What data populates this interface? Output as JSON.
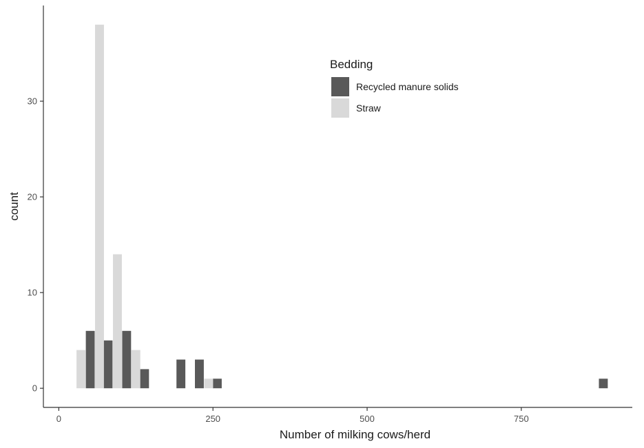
{
  "chart_data": {
    "type": "bar",
    "xlabel": "Number of milking cows/herd",
    "ylabel": "count",
    "xlim": [
      -25,
      930
    ],
    "ylim": [
      -2,
      40
    ],
    "x_ticks": [
      0,
      250,
      500,
      750
    ],
    "y_ticks": [
      0,
      10,
      20,
      30
    ],
    "bin_width": 29.5,
    "grid": false,
    "legend": {
      "title": "Bedding",
      "position": "top-center",
      "items": [
        {
          "label": "Recycled manure solids",
          "color": "#595959"
        },
        {
          "label": "Straw",
          "color": "#d9d9d9"
        }
      ]
    },
    "series": [
      {
        "name": "Recycled manure solids",
        "color": "#595959",
        "bins": [
          {
            "x": 51,
            "count": 6
          },
          {
            "x": 80,
            "count": 5
          },
          {
            "x": 110,
            "count": 6
          },
          {
            "x": 139,
            "count": 2
          },
          {
            "x": 198,
            "count": 3
          },
          {
            "x": 228,
            "count": 3
          },
          {
            "x": 257,
            "count": 1
          },
          {
            "x": 883,
            "count": 1
          }
        ]
      },
      {
        "name": "Straw",
        "color": "#d9d9d9",
        "bins": [
          {
            "x": 36,
            "count": 4
          },
          {
            "x": 66,
            "count": 38
          },
          {
            "x": 95,
            "count": 14
          },
          {
            "x": 125,
            "count": 4
          },
          {
            "x": 243,
            "count": 1
          }
        ]
      }
    ]
  }
}
